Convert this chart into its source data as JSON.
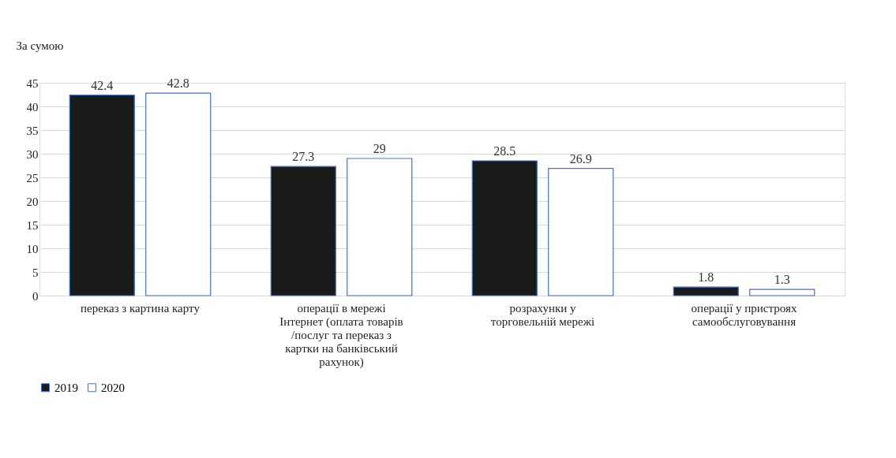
{
  "chart_data": {
    "type": "bar",
    "ylabel": "За сумою",
    "categories": [
      "переказ з картина карту",
      "операції в мережі Інтернет (оплата товарів /послуг та переказ з картки на банківський рахунок)",
      "розрахунки у торговельній мережі",
      "операції у пристроях самообслуговування"
    ],
    "series": [
      {
        "name": "2019",
        "color": "#1a1a1a",
        "values": [
          42.4,
          27.3,
          28.5,
          1.8
        ]
      },
      {
        "name": "2020",
        "color": "#ffffff",
        "values": [
          42.8,
          29,
          26.9,
          1.3
        ]
      }
    ],
    "ylim": [
      0,
      45
    ],
    "yticks": [
      0,
      5,
      10,
      15,
      20,
      25,
      30,
      35,
      40,
      45
    ],
    "grid": "y",
    "legend": "bottom",
    "data_labels": true
  }
}
